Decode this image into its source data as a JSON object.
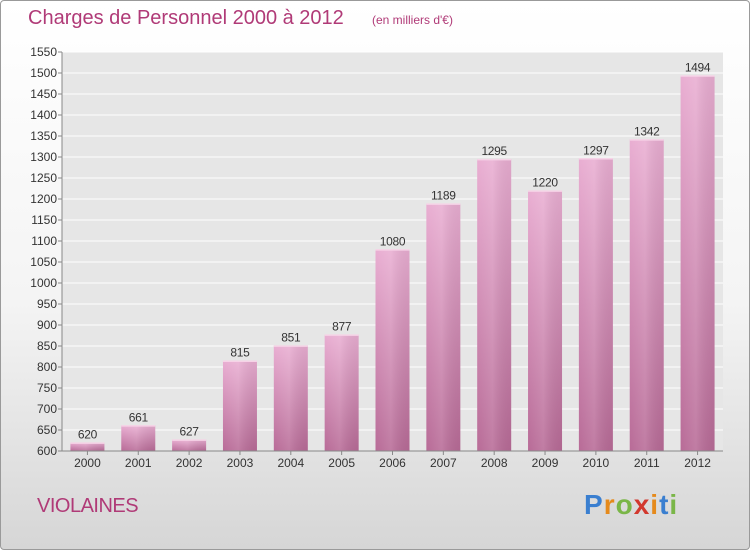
{
  "header": {
    "title": "Charges de Personnel 2000 à 2012",
    "subtitle": "(en milliers d'€)"
  },
  "footer": {
    "town": "VIOLAINES",
    "logo": [
      "P",
      "r",
      "o",
      "x",
      "i",
      "t",
      "i"
    ]
  },
  "colors": {
    "accent": "#b03a77",
    "bar_light": "#e9aed2",
    "bar_dark": "#b86b97",
    "plot_bg": "#e6e6e6"
  },
  "chart_data": {
    "type": "bar",
    "title": "Charges de Personnel 2000 à 2012",
    "subtitle": "(en milliers d'€)",
    "categories": [
      "2000",
      "2001",
      "2002",
      "2003",
      "2004",
      "2005",
      "2006",
      "2007",
      "2008",
      "2009",
      "2010",
      "2011",
      "2012"
    ],
    "values": [
      620,
      661,
      627,
      815,
      851,
      877,
      1080,
      1189,
      1295,
      1220,
      1297,
      1342,
      1494
    ],
    "ylim": [
      600,
      1550
    ],
    "ytick_step": 50,
    "grid": true,
    "legend": "none"
  }
}
